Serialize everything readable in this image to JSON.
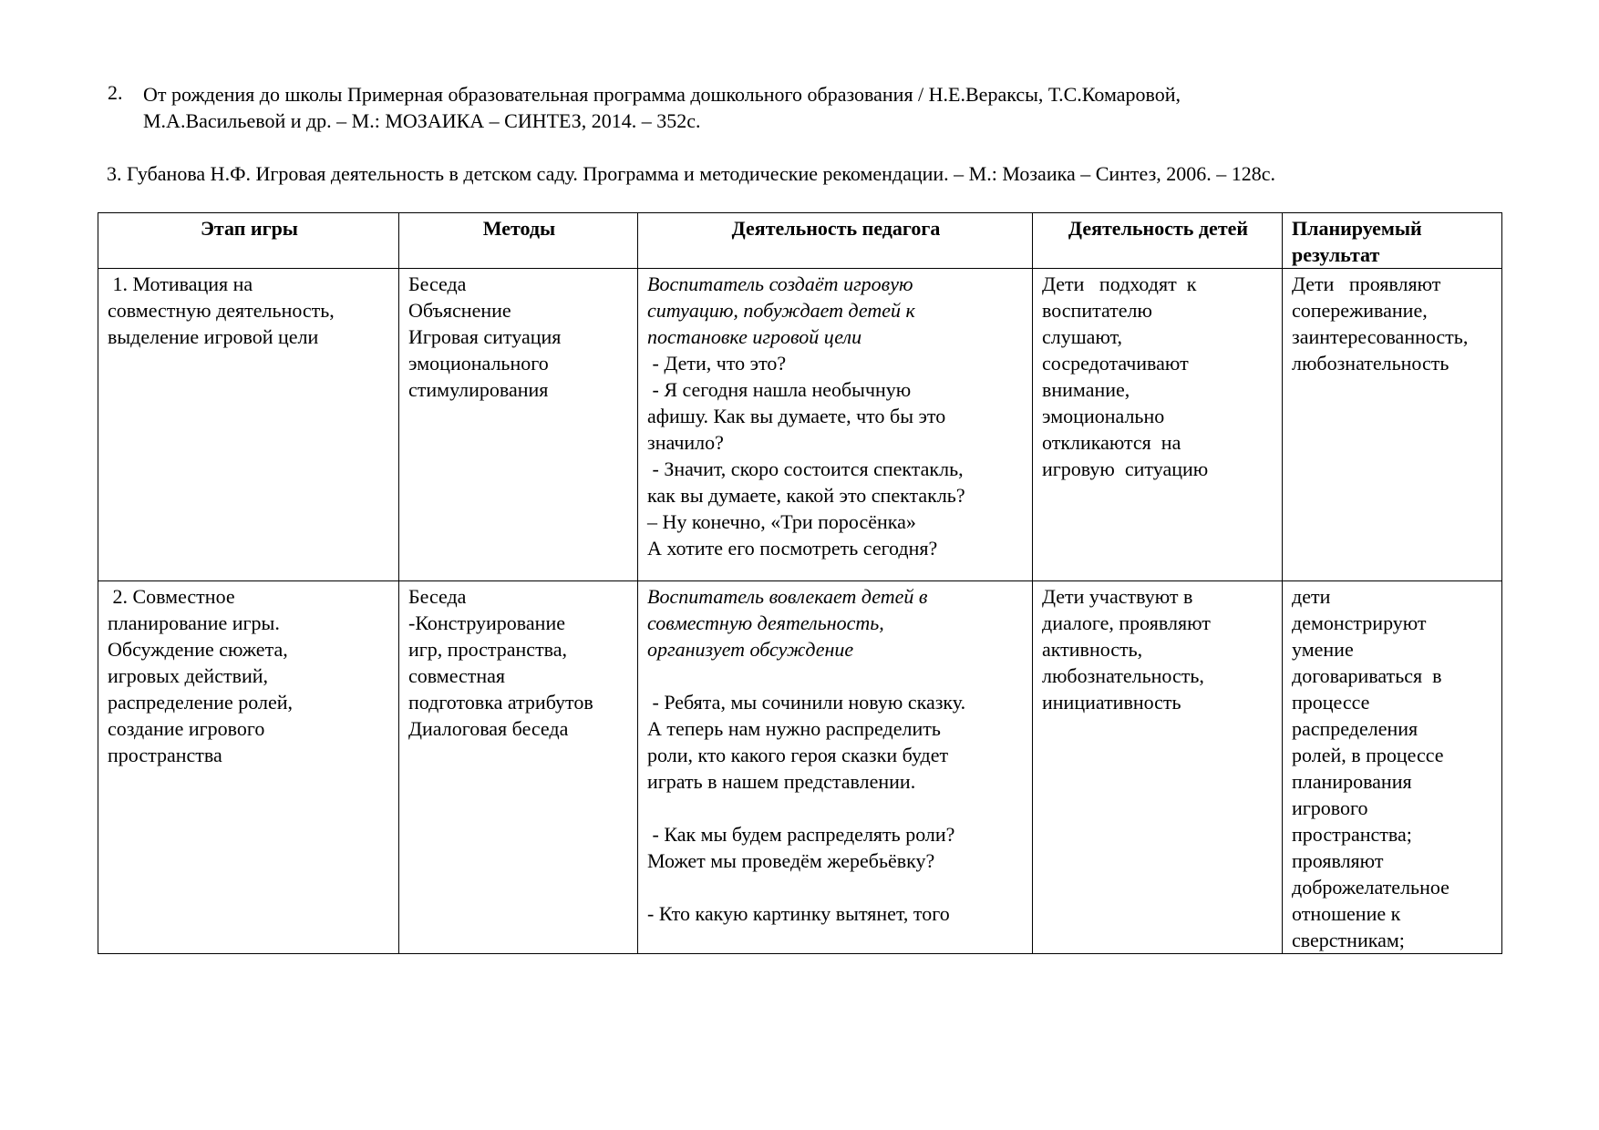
{
  "references": [
    {
      "number": "2.",
      "text": "От рождения до школы Примерная образовательная программа дошкольного образования / Н.Е.Вераксы, Т.С.Комаровой,\nМ.А.Васильевой и др. – М.: МОЗАИКА – СИНТЕЗ, 2014. – 352с."
    },
    {
      "text": "3. Губанова Н.Ф. Игровая деятельность в детском саду. Программа и методические рекомендации. – М.: Мозаика – Синтез, 2006. – 128с."
    }
  ],
  "table": {
    "headers": [
      "Этап игры",
      "Методы",
      "Деятельность педагога",
      "Деятельность детей",
      "Планируемый\nрезультат"
    ],
    "rows": [
      {
        "stage": " 1. Мотивация на\nсовместную деятельность,\nвыделение игровой цели",
        "methods": "Беседа\nОбъяснение\nИгровая ситуация\nэмоционального\nстимулирования",
        "teacher_italic": "Воспитатель создаёт игровую\nситуацию, побуждает детей к\nпостановке игровой цели",
        "teacher": " - Дети, что это?\n - Я сегодня нашла необычную\nафишу. Как вы думаете, что бы это\nзначило?\n - Значит, скоро состоится спектакль,\nкак вы думаете, какой это спектакль?\n– Ну конечно, «Три поросёнка»\nА хотите его посмотреть сегодня?",
        "children": "Дети   подходят  к\nвоспитателю\nслушают,\nсосредотачивают\nвнимание,\nэмоционально\nоткликаются  на\nигровую  ситуацию",
        "result": "Дети   проявляют\nсопереживание,\nзаинтересованность,\nлюбознательность"
      },
      {
        "stage": " 2. Совместное\nпланирование игры.\nОбсуждение сюжета,\nигровых действий,\nраспределение ролей,\nсоздание игрового\nпространства",
        "methods": "Беседа\n-Конструирование\nигр, пространства,\nсовместная\nподготовка атрибутов\nДиалоговая беседа",
        "teacher_italic": "Воспитатель вовлекает детей в\nсовместную деятельность,\nорганизует обсуждение",
        "teacher": "\n - Ребята, мы сочинили новую сказку.\nА теперь нам нужно распределить\nроли, кто какого героя сказки будет\nиграть в нашем представлении.\n\n - Как мы будем распределять роли?\nМожет мы проведём жеребьёвку?\n\n- Кто какую картинку вытянет, того",
        "children": "Дети участвуют в\nдиалоге, проявляют\nактивность,\nлюбознательность,\nинициативность",
        "result": "дети\nдемонстрируют\nумение\nдоговариваться  в\nпроцессе\nраспределения\nролей, в процессе\nпланирования\nигрового\nпространства;\nпроявляют\nдоброжелательное\nотношение к\nсверстникам;"
      }
    ]
  }
}
